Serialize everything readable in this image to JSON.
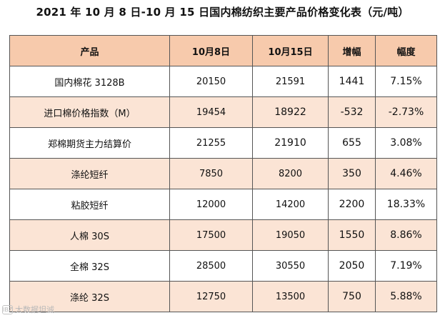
{
  "title": "2021 年 10 月 8 日-10 月 15 日国内棉纺织主要产品价格变化表（元/吨）",
  "table": {
    "headers": [
      "产品",
      "10月8日",
      "10月15日",
      "增幅",
      "幅度"
    ],
    "rows": [
      [
        "国内棉花 3128B",
        "20150",
        "21591",
        "1441",
        "7.15%"
      ],
      [
        "进口棉价格指数（M）",
        "19454",
        "18922",
        "-532",
        "-2.73%"
      ],
      [
        "郑棉期货主力结算价",
        "21255",
        "21910",
        "655",
        "3.08%"
      ],
      [
        "涤纶短纤",
        "7850",
        "8200",
        "350",
        "4.46%"
      ],
      [
        "粘胶短纤",
        "12000",
        "14200",
        "2200",
        "18.33%"
      ],
      [
        "人棉 30S",
        "17500",
        "19050",
        "1550",
        "8.86%"
      ],
      [
        "全棉 32S",
        "28500",
        "30550",
        "2050",
        "7.19%"
      ],
      [
        "涤纶 32S",
        "12750",
        "13500",
        "750",
        "5.88%"
      ]
    ]
  },
  "watermark": {
    "logo": "IBZ",
    "text": "大数据坦诚"
  },
  "colors": {
    "header_bg": "#f7caac",
    "even_row_bg": "#fbe4d5",
    "odd_row_bg": "#ffffff",
    "border": "#555555"
  }
}
